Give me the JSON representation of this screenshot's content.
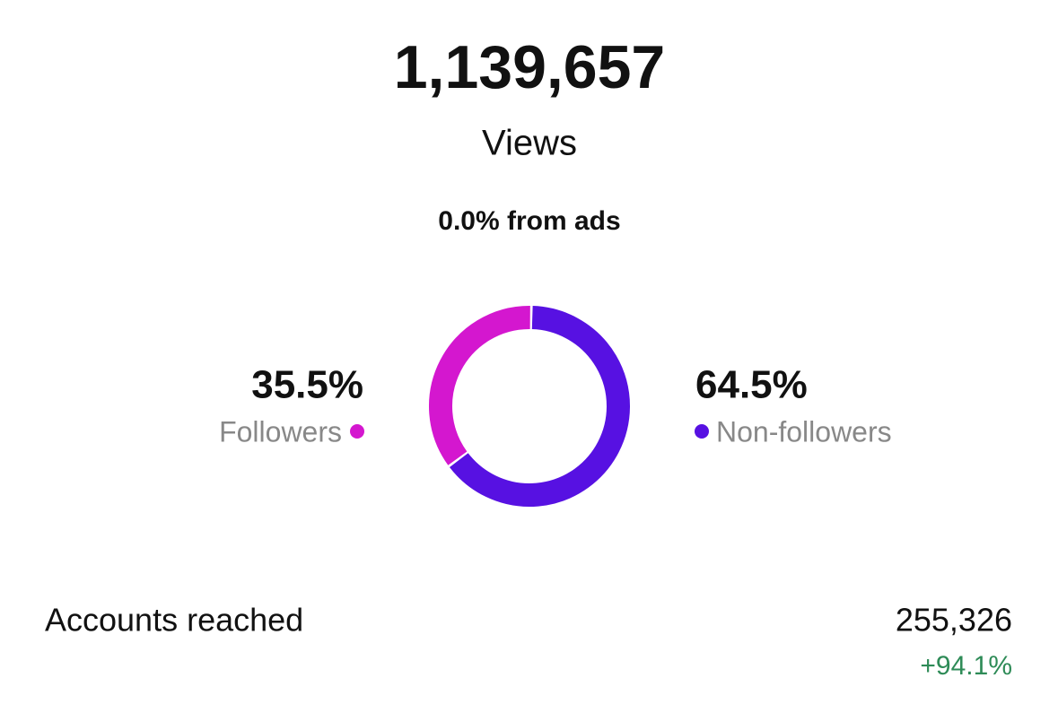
{
  "header": {
    "total": "1,139,657",
    "label": "Views",
    "ads": "0.0% from ads"
  },
  "chart_data": {
    "type": "donut",
    "categories": [
      "Followers",
      "Non-followers"
    ],
    "values": [
      35.5,
      64.5
    ],
    "value_labels": [
      "35.5%",
      "64.5%"
    ],
    "colors": [
      "#d417cf",
      "#5711e2"
    ]
  },
  "metrics": {
    "label": "Accounts reached",
    "value": "255,326",
    "change": "+94.1%"
  }
}
